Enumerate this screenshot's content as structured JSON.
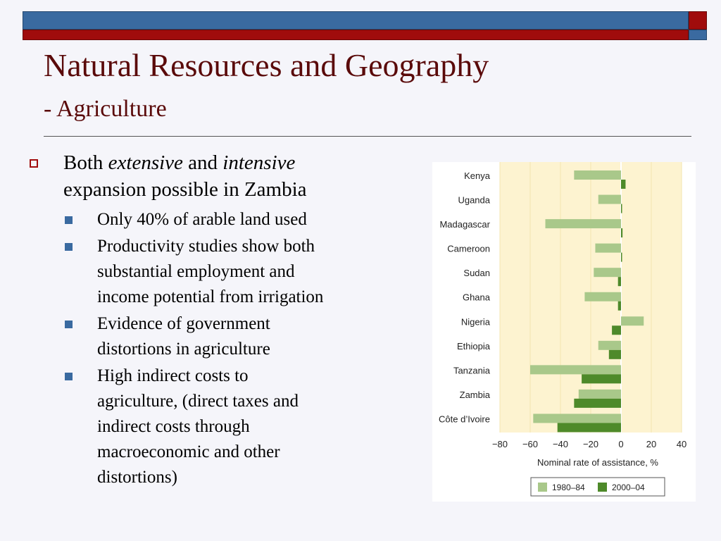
{
  "slide": {
    "title": "Natural Resources and Geography",
    "subtitle": "- Agriculture"
  },
  "content": {
    "main_bullet": {
      "part1": "Both ",
      "em1": "extensive",
      "part2": " and ",
      "em2": "intensive",
      "line2": "expansion possible in Zambia"
    },
    "sub_bullets": [
      {
        "lines": [
          "Only 40% of arable land used"
        ]
      },
      {
        "lines": [
          "Productivity studies show both",
          "substantial employment and",
          "income potential from irrigation"
        ]
      },
      {
        "lines": [
          "Evidence of government",
          "distortions in agriculture"
        ]
      },
      {
        "lines": [
          "High indirect costs to",
          "agriculture, (direct taxes and",
          "indirect costs through",
          "macroeconomic and other",
          "distortions)"
        ]
      }
    ]
  },
  "colors": {
    "accent_red": "#a00c0c",
    "accent_blue": "#3a6aa0",
    "title_color": "#5a0a0a",
    "light_bar": "#a9c88a",
    "dark_bar": "#4e8a2a",
    "panel_bg": "#fdf3d0"
  },
  "chart_data": {
    "type": "bar",
    "orientation": "horizontal",
    "categories": [
      "Kenya",
      "Uganda",
      "Madagascar",
      "Cameroon",
      "Sudan",
      "Ghana",
      "Nigeria",
      "Ethiopia",
      "Tanzania",
      "Zambia",
      "Côte d’Ivoire"
    ],
    "series": [
      {
        "name": "1980–84",
        "values": [
          -31,
          -15,
          -50,
          -17,
          -18,
          -24,
          15,
          -15,
          -60,
          -28,
          -58
        ]
      },
      {
        "name": "2000–04",
        "values": [
          3,
          0,
          1,
          0.5,
          -2,
          -2,
          -6,
          -8,
          -26,
          -31,
          -42
        ]
      }
    ],
    "xlim": [
      -80,
      40
    ],
    "xticks": [
      "−80",
      "−60",
      "−40",
      "−20",
      "0",
      "20",
      "40"
    ],
    "xtick_values": [
      -80,
      -60,
      -40,
      -20,
      0,
      20,
      40
    ],
    "xlabel": "Nominal rate of assistance, %",
    "grid": true,
    "legend_position": "bottom-center"
  }
}
